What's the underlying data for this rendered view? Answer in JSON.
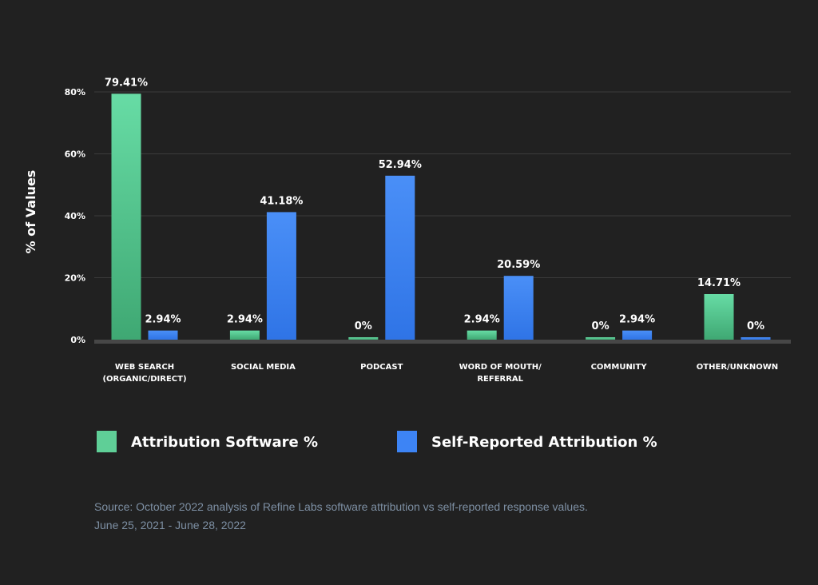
{
  "chart_data": {
    "type": "bar",
    "title": "",
    "xlabel": "",
    "ylabel": "% of Values",
    "ylim": [
      0,
      80
    ],
    "yticks": [
      "0%",
      "20%",
      "40%",
      "60%",
      "80%"
    ],
    "ytick_values": [
      0,
      20,
      40,
      60,
      80
    ],
    "grid": true,
    "legend_position": "bottom",
    "categories": [
      [
        "WEB SEARCH",
        "(ORGANIC/DIRECT)"
      ],
      [
        "SOCIAL MEDIA"
      ],
      [
        "PODCAST"
      ],
      [
        "WORD OF MOUTH/",
        "REFERRAL"
      ],
      [
        "COMMUNITY"
      ],
      [
        "OTHER/UNKNOWN"
      ]
    ],
    "series": [
      {
        "name": "Attribution Software %",
        "color": "#5fcf97",
        "values": [
          79.41,
          2.94,
          0,
          2.94,
          0,
          14.71
        ],
        "labels": [
          "79.41%",
          "2.94%",
          "0%",
          "2.94%",
          "0%",
          "14.71%"
        ]
      },
      {
        "name": "Self-Reported Attribution %",
        "color": "#3d84f5",
        "values": [
          2.94,
          41.18,
          52.94,
          20.59,
          2.94,
          0
        ],
        "labels": [
          "2.94%",
          "41.18%",
          "52.94%",
          "20.59%",
          "2.94%",
          "0%"
        ]
      }
    ]
  },
  "source": {
    "line1": "Source: October 2022 analysis of Refine Labs software attribution vs self-reported response values.",
    "line2": "June 25, 2021 - June 28, 2022"
  }
}
